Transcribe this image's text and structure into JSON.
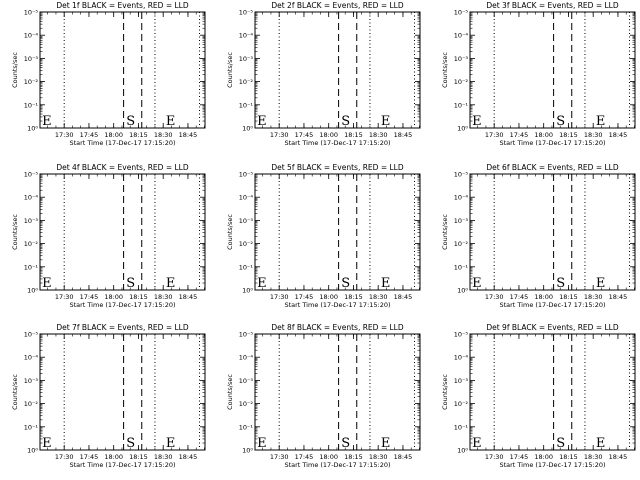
{
  "window": {
    "title": ""
  },
  "chart_data": [
    {
      "type": "line",
      "title": "Det 1f BLACK = Events, RED = LLD",
      "xlabel": "Start Time (17-Dec-17 17:15:20)",
      "ylabel": "Counts/sec",
      "x_tick_labels": [
        "17:30",
        "17:45",
        "18:00",
        "18:15",
        "18:30",
        "18:45"
      ],
      "y_tick_labels": [
        "10⁰",
        "10⁻¹",
        "10⁻²",
        "10⁻³",
        "10⁻⁴",
        "10⁻⁵"
      ],
      "log_scale_y": true,
      "xlim": [
        "17:15:20",
        "18:55:20"
      ],
      "dotted_lines": [
        "17:30",
        "18:25",
        "18:52"
      ],
      "dashed_lines": [
        "18:06",
        "18:17"
      ],
      "markers": [
        {
          "label": "E",
          "x": "17:16"
        },
        {
          "label": "S",
          "x": "18:07"
        },
        {
          "label": "E",
          "x": "18:31"
        }
      ],
      "series": [
        {
          "name": "Events",
          "color": "#000000",
          "values": []
        },
        {
          "name": "LLD",
          "color": "#ff0000",
          "values": []
        }
      ]
    },
    {
      "type": "line",
      "title": "Det 2f BLACK = Events, RED = LLD",
      "xlabel": "Start Time (17-Dec-17 17:15:20)",
      "ylabel": "Counts/sec",
      "x_tick_labels": [
        "17:30",
        "17:45",
        "18:00",
        "18:15",
        "18:30",
        "18:45"
      ],
      "y_tick_labels": [
        "10⁰",
        "10⁻¹",
        "10⁻²",
        "10⁻³",
        "10⁻⁴",
        "10⁻⁵"
      ],
      "log_scale_y": true,
      "xlim": [
        "17:15:20",
        "18:55:20"
      ],
      "dotted_lines": [
        "17:30",
        "18:25",
        "18:52"
      ],
      "dashed_lines": [
        "18:06",
        "18:17"
      ],
      "markers": [
        {
          "label": "E",
          "x": "17:16"
        },
        {
          "label": "S",
          "x": "18:07"
        },
        {
          "label": "E",
          "x": "18:31"
        }
      ],
      "series": [
        {
          "name": "Events",
          "color": "#000000",
          "values": []
        },
        {
          "name": "LLD",
          "color": "#ff0000",
          "values": []
        }
      ]
    },
    {
      "type": "line",
      "title": "Det 3f BLACK = Events, RED = LLD",
      "xlabel": "Start Time (17-Dec-17 17:15:20)",
      "ylabel": "Counts/sec",
      "x_tick_labels": [
        "17:30",
        "17:45",
        "18:00",
        "18:15",
        "18:30",
        "18:45"
      ],
      "y_tick_labels": [
        "10⁰",
        "10⁻¹",
        "10⁻²",
        "10⁻³",
        "10⁻⁴",
        "10⁻⁵"
      ],
      "log_scale_y": true,
      "xlim": [
        "17:15:20",
        "18:55:20"
      ],
      "dotted_lines": [
        "17:30",
        "18:25",
        "18:52"
      ],
      "dashed_lines": [
        "18:06",
        "18:17"
      ],
      "markers": [
        {
          "label": "E",
          "x": "17:16"
        },
        {
          "label": "S",
          "x": "18:07"
        },
        {
          "label": "E",
          "x": "18:31"
        }
      ],
      "series": [
        {
          "name": "Events",
          "color": "#000000",
          "values": []
        },
        {
          "name": "LLD",
          "color": "#ff0000",
          "values": []
        }
      ]
    },
    {
      "type": "line",
      "title": "Det 4f BLACK = Events, RED = LLD",
      "xlabel": "Start Time (17-Dec-17 17:15:20)",
      "ylabel": "Counts/sec",
      "x_tick_labels": [
        "17:30",
        "17:45",
        "18:00",
        "18:15",
        "18:30",
        "18:45"
      ],
      "y_tick_labels": [
        "10⁰",
        "10⁻¹",
        "10⁻²",
        "10⁻³",
        "10⁻⁴",
        "10⁻⁵"
      ],
      "log_scale_y": true,
      "xlim": [
        "17:15:20",
        "18:55:20"
      ],
      "dotted_lines": [
        "17:30",
        "18:25",
        "18:52"
      ],
      "dashed_lines": [
        "18:06",
        "18:17"
      ],
      "markers": [
        {
          "label": "E",
          "x": "17:16"
        },
        {
          "label": "S",
          "x": "18:07"
        },
        {
          "label": "E",
          "x": "18:31"
        }
      ],
      "series": [
        {
          "name": "Events",
          "color": "#000000",
          "values": []
        },
        {
          "name": "LLD",
          "color": "#ff0000",
          "values": []
        }
      ]
    },
    {
      "type": "line",
      "title": "Det 5f BLACK = Events, RED = LLD",
      "xlabel": "Start Time (17-Dec-17 17:15:20)",
      "ylabel": "Counts/sec",
      "x_tick_labels": [
        "17:30",
        "17:45",
        "18:00",
        "18:15",
        "18:30",
        "18:45"
      ],
      "y_tick_labels": [
        "10⁰",
        "10⁻¹",
        "10⁻²",
        "10⁻³",
        "10⁻⁴",
        "10⁻⁵"
      ],
      "log_scale_y": true,
      "xlim": [
        "17:15:20",
        "18:55:20"
      ],
      "dotted_lines": [
        "17:30",
        "18:25",
        "18:52"
      ],
      "dashed_lines": [
        "18:06",
        "18:17"
      ],
      "markers": [
        {
          "label": "E",
          "x": "17:16"
        },
        {
          "label": "S",
          "x": "18:07"
        },
        {
          "label": "E",
          "x": "18:31"
        }
      ],
      "series": [
        {
          "name": "Events",
          "color": "#000000",
          "values": []
        },
        {
          "name": "LLD",
          "color": "#ff0000",
          "values": []
        }
      ]
    },
    {
      "type": "line",
      "title": "Det 6f BLACK = Events, RED = LLD",
      "xlabel": "Start Time (17-Dec-17 17:15:20)",
      "ylabel": "Counts/sec",
      "x_tick_labels": [
        "17:30",
        "17:45",
        "18:00",
        "18:15",
        "18:30",
        "18:45"
      ],
      "y_tick_labels": [
        "10⁰",
        "10⁻¹",
        "10⁻²",
        "10⁻³",
        "10⁻⁴",
        "10⁻⁵"
      ],
      "log_scale_y": true,
      "xlim": [
        "17:15:20",
        "18:55:20"
      ],
      "dotted_lines": [
        "17:30",
        "18:25",
        "18:52"
      ],
      "dashed_lines": [
        "18:06",
        "18:17"
      ],
      "markers": [
        {
          "label": "E",
          "x": "17:16"
        },
        {
          "label": "S",
          "x": "18:07"
        },
        {
          "label": "E",
          "x": "18:31"
        }
      ],
      "series": [
        {
          "name": "Events",
          "color": "#000000",
          "values": []
        },
        {
          "name": "LLD",
          "color": "#ff0000",
          "values": []
        }
      ]
    },
    {
      "type": "line",
      "title": "Det 7f BLACK = Events, RED = LLD",
      "xlabel": "Start Time (17-Dec-17 17:15:20)",
      "ylabel": "Counts/sec",
      "x_tick_labels": [
        "17:30",
        "17:45",
        "18:00",
        "18:15",
        "18:30",
        "18:45"
      ],
      "y_tick_labels": [
        "10⁰",
        "10⁻¹",
        "10⁻²",
        "10⁻³",
        "10⁻⁴",
        "10⁻⁵"
      ],
      "log_scale_y": true,
      "xlim": [
        "17:15:20",
        "18:55:20"
      ],
      "dotted_lines": [
        "17:30",
        "18:25",
        "18:52"
      ],
      "dashed_lines": [
        "18:06",
        "18:17"
      ],
      "markers": [
        {
          "label": "E",
          "x": "17:16"
        },
        {
          "label": "S",
          "x": "18:07"
        },
        {
          "label": "E",
          "x": "18:31"
        }
      ],
      "series": [
        {
          "name": "Events",
          "color": "#000000",
          "values": []
        },
        {
          "name": "LLD",
          "color": "#ff0000",
          "values": []
        }
      ]
    },
    {
      "type": "line",
      "title": "Det 8f BLACK = Events, RED = LLD",
      "xlabel": "Start Time (17-Dec-17 17:15:20)",
      "ylabel": "Counts/sec",
      "x_tick_labels": [
        "17:30",
        "17:45",
        "18:00",
        "18:15",
        "18:30",
        "18:45"
      ],
      "y_tick_labels": [
        "10⁰",
        "10⁻¹",
        "10⁻²",
        "10⁻³",
        "10⁻⁴",
        "10⁻⁵"
      ],
      "log_scale_y": true,
      "xlim": [
        "17:15:20",
        "18:55:20"
      ],
      "dotted_lines": [
        "17:30",
        "18:25",
        "18:52"
      ],
      "dashed_lines": [
        "18:06",
        "18:17"
      ],
      "markers": [
        {
          "label": "E",
          "x": "17:16"
        },
        {
          "label": "S",
          "x": "18:07"
        },
        {
          "label": "E",
          "x": "18:31"
        }
      ],
      "series": [
        {
          "name": "Events",
          "color": "#000000",
          "values": []
        },
        {
          "name": "LLD",
          "color": "#ff0000",
          "values": []
        }
      ]
    },
    {
      "type": "line",
      "title": "Det 9f BLACK = Events, RED = LLD",
      "xlabel": "Start Time (17-Dec-17 17:15:20)",
      "ylabel": "Counts/sec",
      "x_tick_labels": [
        "17:30",
        "17:45",
        "18:00",
        "18:15",
        "18:30",
        "18:45"
      ],
      "y_tick_labels": [
        "10⁰",
        "10⁻¹",
        "10⁻²",
        "10⁻³",
        "10⁻⁴",
        "10⁻⁵"
      ],
      "log_scale_y": true,
      "xlim": [
        "17:15:20",
        "18:55:20"
      ],
      "dotted_lines": [
        "17:30",
        "18:25",
        "18:52"
      ],
      "dashed_lines": [
        "18:06",
        "18:17"
      ],
      "markers": [
        {
          "label": "E",
          "x": "17:16"
        },
        {
          "label": "S",
          "x": "18:07"
        },
        {
          "label": "E",
          "x": "18:31"
        }
      ],
      "series": [
        {
          "name": "Events",
          "color": "#000000",
          "values": []
        },
        {
          "name": "LLD",
          "color": "#ff0000",
          "values": []
        }
      ]
    }
  ]
}
